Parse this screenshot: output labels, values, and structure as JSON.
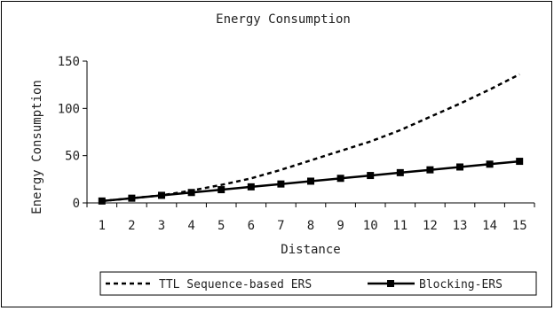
{
  "chart_data": {
    "type": "line",
    "title": "Energy Consumption",
    "xlabel": "Distance",
    "ylabel": "Energy Consumption",
    "categories": [
      1,
      2,
      3,
      4,
      5,
      6,
      7,
      8,
      9,
      10,
      11,
      12,
      13,
      14,
      15
    ],
    "ylim": [
      0,
      150
    ],
    "yticks": [
      0,
      50,
      100,
      150
    ],
    "grid": false,
    "legend_position": "bottom",
    "series": [
      {
        "name": "TTL Sequence-based ERS",
        "style": "dashed",
        "color": "#000000",
        "values": [
          2,
          5,
          8,
          13,
          19,
          26,
          35,
          45,
          55,
          65,
          77,
          91,
          105,
          120,
          136
        ]
      },
      {
        "name": "Blocking-ERS",
        "style": "solid-square-markers",
        "color": "#000000",
        "values": [
          2,
          5,
          8,
          11,
          14,
          17,
          20,
          23,
          26,
          29,
          32,
          35,
          38,
          41,
          44
        ]
      }
    ]
  }
}
